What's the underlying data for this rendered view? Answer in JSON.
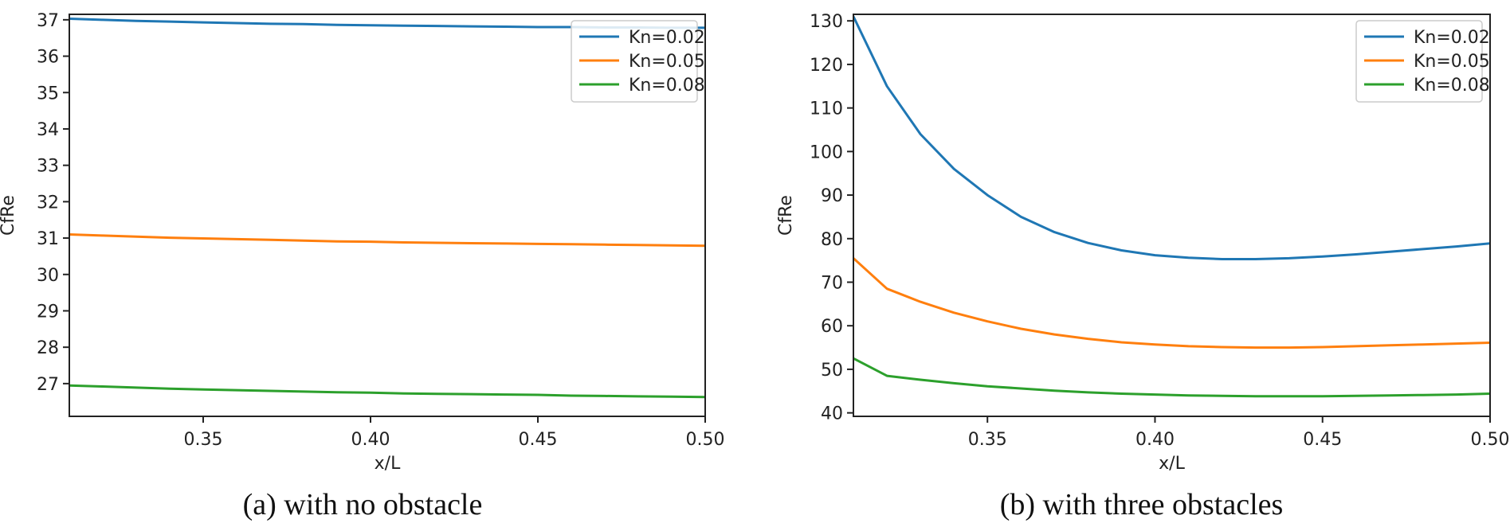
{
  "chart_data": [
    {
      "type": "line",
      "xlabel": "x/L",
      "ylabel": "CfRe",
      "xlim": [
        0.31,
        0.5
      ],
      "ylim": [
        26.1,
        37.15
      ],
      "xticks": [
        0.35,
        0.4,
        0.45,
        0.5
      ],
      "xtick_labels": [
        "0.35",
        "0.40",
        "0.45",
        "0.50"
      ],
      "yticks": [
        27,
        28,
        29,
        30,
        31,
        32,
        33,
        34,
        35,
        36,
        37
      ],
      "ytick_labels": [
        "27",
        "28",
        "29",
        "30",
        "31",
        "32",
        "33",
        "34",
        "35",
        "36",
        "37"
      ],
      "grid": false,
      "legend": "top-right",
      "caption": "(a) with no obstacle",
      "x": [
        0.31,
        0.32,
        0.33,
        0.34,
        0.35,
        0.36,
        0.37,
        0.38,
        0.39,
        0.4,
        0.41,
        0.42,
        0.43,
        0.44,
        0.45,
        0.46,
        0.47,
        0.48,
        0.49,
        0.5
      ],
      "series": [
        {
          "name": "Kn=0.02",
          "color": "#1f77b4",
          "values": [
            37.03,
            37.0,
            36.97,
            36.95,
            36.93,
            36.91,
            36.89,
            36.88,
            36.86,
            36.85,
            36.84,
            36.83,
            36.82,
            36.81,
            36.8,
            36.8,
            36.79,
            36.79,
            36.78,
            36.78
          ]
        },
        {
          "name": "Kn=0.05",
          "color": "#ff7f0e",
          "values": [
            31.1,
            31.07,
            31.04,
            31.01,
            30.99,
            30.97,
            30.95,
            30.93,
            30.91,
            30.9,
            30.88,
            30.87,
            30.86,
            30.85,
            30.84,
            30.83,
            30.82,
            30.81,
            30.8,
            30.79
          ]
        },
        {
          "name": "Kn=0.08",
          "color": "#2ca02c",
          "values": [
            26.95,
            26.92,
            26.89,
            26.86,
            26.84,
            26.82,
            26.8,
            26.78,
            26.76,
            26.75,
            26.73,
            26.72,
            26.71,
            26.7,
            26.69,
            26.67,
            26.66,
            26.65,
            26.64,
            26.63
          ]
        }
      ]
    },
    {
      "type": "line",
      "xlabel": "x/L",
      "ylabel": "CfRe",
      "xlim": [
        0.31,
        0.5
      ],
      "ylim": [
        39.2,
        131.5
      ],
      "xticks": [
        0.35,
        0.4,
        0.45,
        0.5
      ],
      "xtick_labels": [
        "0.35",
        "0.40",
        "0.45",
        "0.50"
      ],
      "yticks": [
        40,
        50,
        60,
        70,
        80,
        90,
        100,
        110,
        120,
        130
      ],
      "ytick_labels": [
        "40",
        "50",
        "60",
        "70",
        "80",
        "90",
        "100",
        "110",
        "120",
        "130"
      ],
      "grid": false,
      "legend": "top-right",
      "caption": "(b) with three obstacles",
      "x": [
        0.31,
        0.32,
        0.33,
        0.34,
        0.35,
        0.36,
        0.37,
        0.38,
        0.39,
        0.4,
        0.41,
        0.42,
        0.43,
        0.44,
        0.45,
        0.46,
        0.47,
        0.48,
        0.49,
        0.5
      ],
      "series": [
        {
          "name": "Kn=0.02",
          "color": "#1f77b4",
          "values": [
            131,
            115,
            104,
            96,
            90,
            85,
            81.5,
            79,
            77.3,
            76.2,
            75.6,
            75.3,
            75.3,
            75.5,
            75.9,
            76.4,
            77,
            77.6,
            78.2,
            78.9
          ]
        },
        {
          "name": "Kn=0.05",
          "color": "#ff7f0e",
          "values": [
            75.5,
            68.5,
            65.5,
            63,
            61,
            59.3,
            58,
            57,
            56.2,
            55.7,
            55.3,
            55.1,
            55,
            55,
            55.1,
            55.3,
            55.5,
            55.7,
            55.9,
            56.1
          ]
        },
        {
          "name": "Kn=0.08",
          "color": "#2ca02c",
          "values": [
            52.5,
            48.5,
            47.6,
            46.8,
            46.1,
            45.6,
            45.1,
            44.7,
            44.4,
            44.2,
            44.0,
            43.9,
            43.8,
            43.8,
            43.8,
            43.9,
            44.0,
            44.1,
            44.2,
            44.4
          ]
        }
      ]
    }
  ]
}
